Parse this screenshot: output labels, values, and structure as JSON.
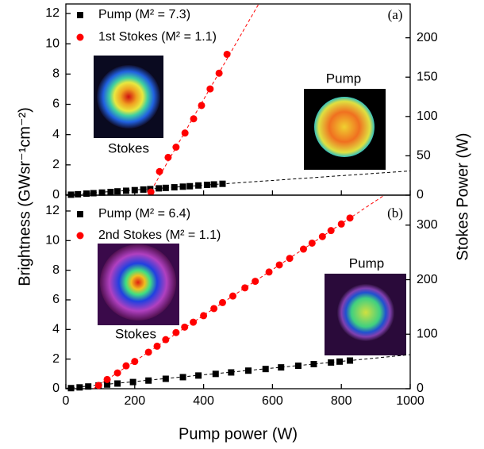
{
  "chart_data": [
    {
      "type": "scatter",
      "panel_label": "(a)",
      "ylabel": "Brightness (GWsr⁻¹cm⁻²)",
      "y2label": "Stokes Power (W)",
      "xlim": [
        0,
        1000
      ],
      "ylim": [
        0,
        12.63
      ],
      "yticks": [
        0,
        2,
        4,
        6,
        8,
        10,
        12
      ],
      "y2lim": [
        0,
        243
      ],
      "y2ticks": [
        0,
        50,
        100,
        150,
        200
      ],
      "series": [
        {
          "name": "Pump (M² = 7.3)",
          "color": "#000000",
          "marker": "square",
          "x": [
            15,
            35,
            60,
            80,
            105,
            130,
            150,
            175,
            200,
            225,
            245,
            270,
            290,
            315,
            340,
            360,
            385,
            410,
            430,
            455
          ],
          "values": [
            0.03,
            0.06,
            0.1,
            0.13,
            0.17,
            0.21,
            0.25,
            0.29,
            0.33,
            0.37,
            0.4,
            0.45,
            0.48,
            0.52,
            0.56,
            0.59,
            0.64,
            0.68,
            0.71,
            0.75
          ]
        },
        {
          "name": "1st Stokes (M² = 1.1)",
          "color": "#ff0000",
          "marker": "circle",
          "axis": "y2",
          "x": [
            247,
            272,
            297,
            320,
            346,
            371,
            394,
            419,
            445,
            468
          ],
          "values": [
            4,
            30,
            48,
            61,
            79,
            97,
            114,
            135,
            155,
            179
          ]
        }
      ],
      "fits": [
        {
          "color": "#000000",
          "x": [
            0,
            1000
          ],
          "values": [
            0.03,
            1.6
          ]
        },
        {
          "color": "#ff0000",
          "axis": "y2",
          "x": [
            240,
            560
          ],
          "values": [
            0,
            243
          ]
        }
      ],
      "insets": [
        "Stokes",
        "Pump"
      ]
    },
    {
      "type": "scatter",
      "panel_label": "(b)",
      "xlabel": "Pump power (W)",
      "xlim": [
        0,
        1000
      ],
      "xticks": [
        0,
        200,
        400,
        600,
        800,
        1000
      ],
      "ylim": [
        0,
        13.07
      ],
      "yticks": [
        0,
        2,
        4,
        6,
        8,
        10,
        12
      ],
      "y2lim": [
        0,
        355
      ],
      "y2ticks": [
        0,
        100,
        200,
        300
      ],
      "series": [
        {
          "name": "Pump (M² = 6.4)",
          "color": "#000000",
          "marker": "square",
          "x": [
            15,
            40,
            65,
            95,
            120,
            150,
            195,
            240,
            290,
            340,
            385,
            435,
            480,
            530,
            580,
            625,
            675,
            720,
            770,
            795,
            825
          ],
          "values": [
            0.04,
            0.09,
            0.15,
            0.22,
            0.28,
            0.35,
            0.45,
            0.55,
            0.67,
            0.78,
            0.89,
            1.0,
            1.1,
            1.22,
            1.33,
            1.44,
            1.55,
            1.66,
            1.77,
            1.83,
            1.9
          ]
        },
        {
          "name": "2nd Stokes (M² = 1.1)",
          "color": "#ff0000",
          "marker": "circle",
          "axis": "y2",
          "x": [
            95,
            120,
            150,
            175,
            200,
            240,
            265,
            290,
            320,
            345,
            370,
            400,
            430,
            455,
            485,
            520,
            550,
            590,
            620,
            650,
            690,
            715,
            745,
            770,
            800,
            825
          ],
          "values": [
            6,
            17,
            29,
            42,
            50,
            67,
            78,
            90,
            103,
            113,
            122,
            134,
            147,
            158,
            170,
            185,
            197,
            214,
            227,
            239,
            256,
            267,
            279,
            290,
            302,
            313
          ]
        }
      ],
      "fits": [
        {
          "color": "#000000",
          "x": [
            0,
            1000
          ],
          "values": [
            0.03,
            2.3
          ]
        },
        {
          "color": "#ff0000",
          "axis": "y2",
          "x": [
            80,
            925
          ],
          "values": [
            0,
            355
          ]
        }
      ],
      "insets": [
        "Stokes",
        "Pump"
      ]
    }
  ]
}
